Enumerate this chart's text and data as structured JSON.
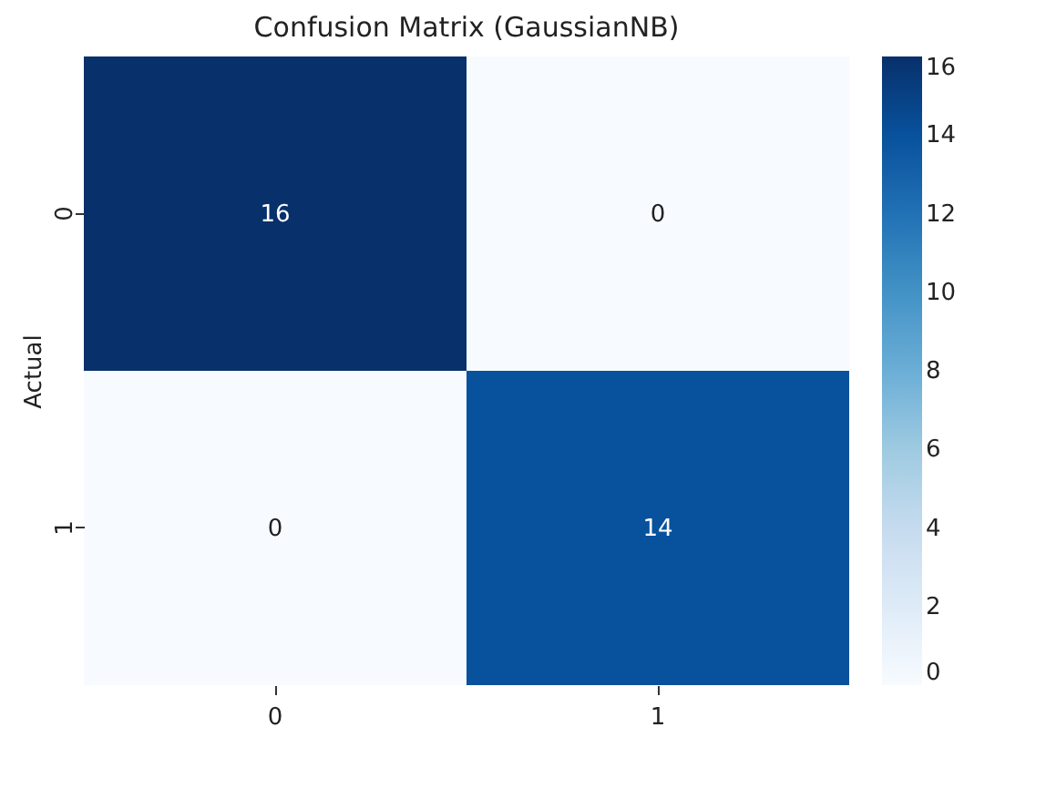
{
  "chart_data": {
    "type": "heatmap",
    "title": "Confusion Matrix (GaussianNB)",
    "ylabel": "Actual",
    "categories": [
      "0",
      "1"
    ],
    "y_categories": [
      "0",
      "1"
    ],
    "cells": [
      [
        16,
        0
      ],
      [
        0,
        14
      ]
    ],
    "clim": [
      0,
      16
    ],
    "cticks": [
      0,
      2,
      4,
      6,
      8,
      10,
      12,
      14,
      16
    ],
    "data_labels": true
  }
}
